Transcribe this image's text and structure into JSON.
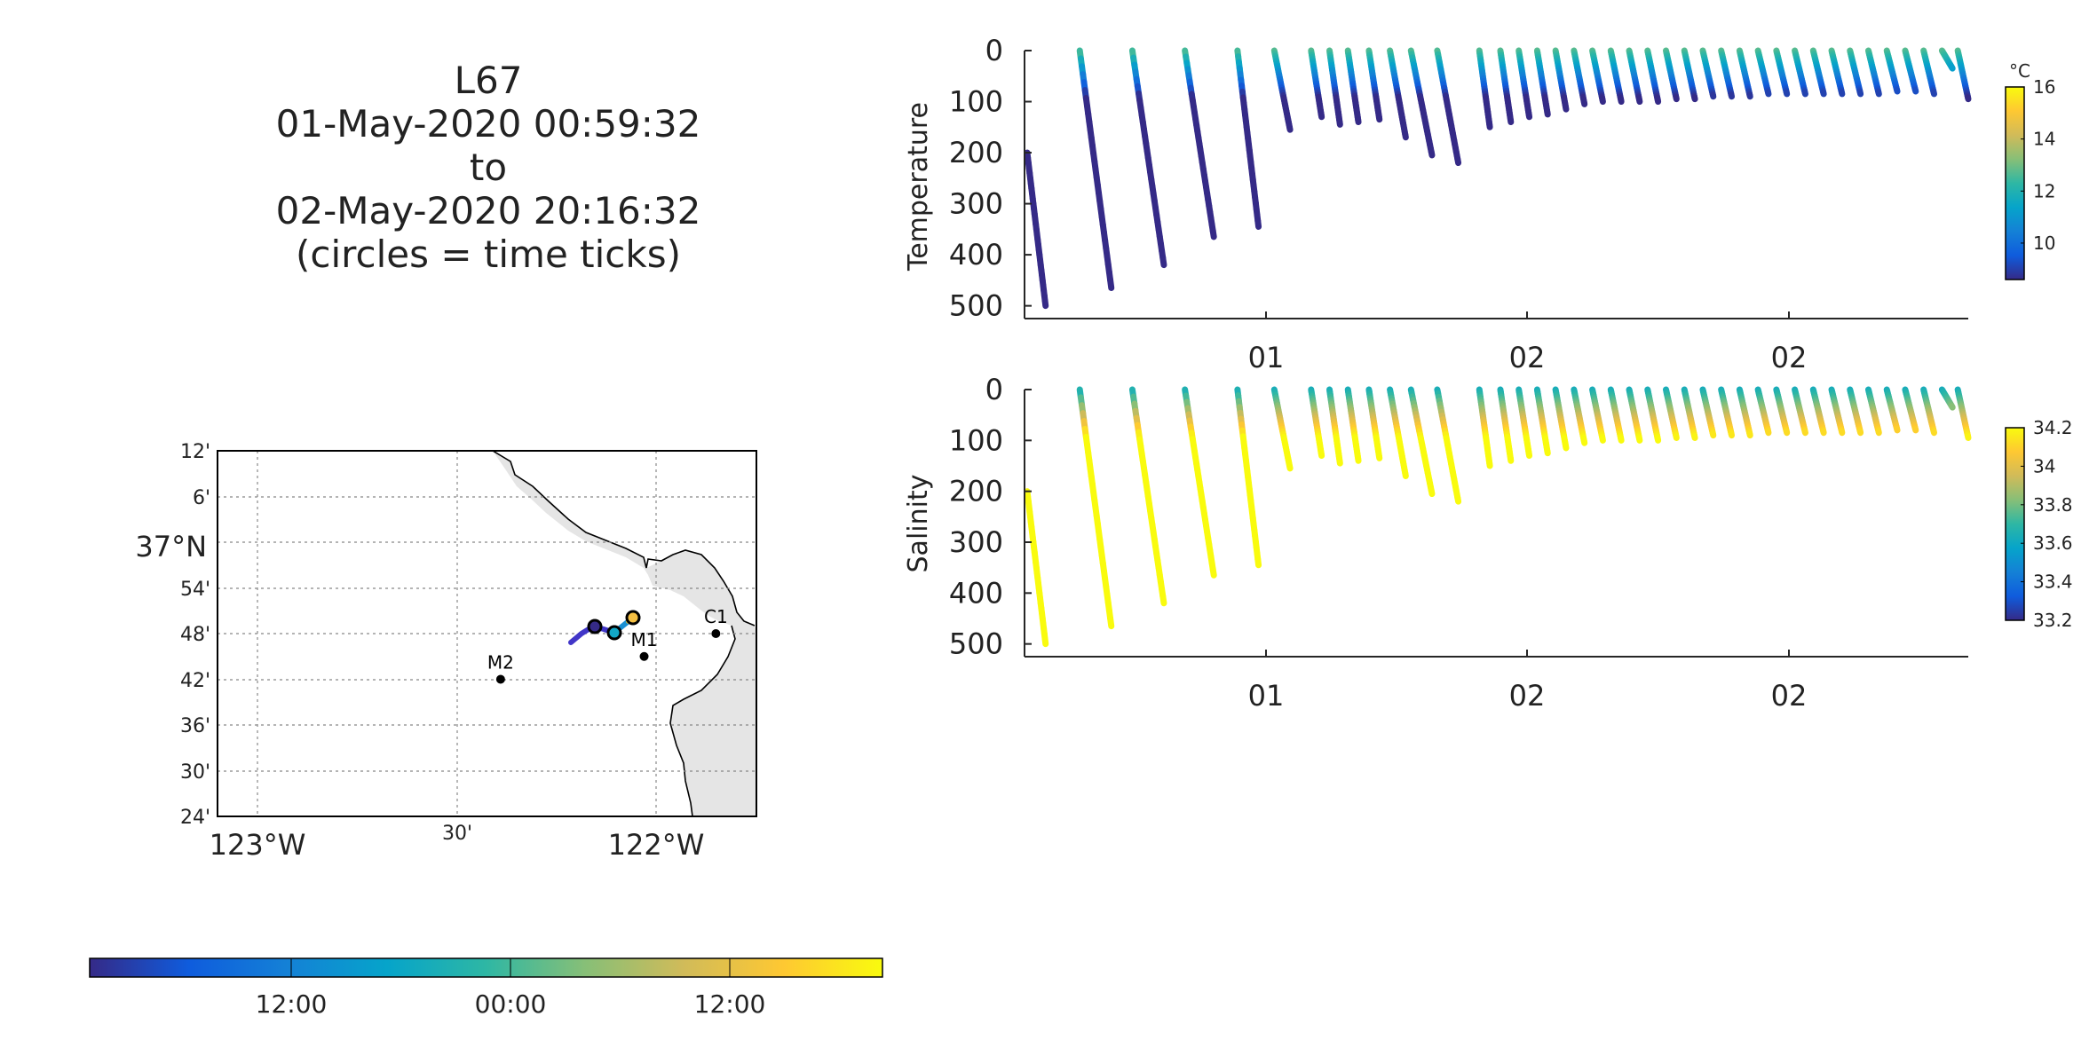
{
  "title_lines": [
    "L67",
    "01-May-2020 00:59:32",
    "to",
    "02-May-2020 20:16:32",
    "(circles = time ticks)"
  ],
  "colors": {
    "parula": [
      "#352a87",
      "#0f5cdd",
      "#1481d6",
      "#06a4ca",
      "#2eb7a4",
      "#87bf77",
      "#d1bb59",
      "#fec832",
      "#f9fb0e"
    ],
    "land": "#e5e5e5",
    "grid": "#888888",
    "axis": "#262626"
  },
  "map": {
    "lat_labels": [
      "12'",
      "6'",
      "37°N",
      "54'",
      "48'",
      "42'",
      "36'",
      "30'",
      "24'"
    ],
    "lon_labels": [
      "123°W",
      "30'",
      "122°W"
    ],
    "stations": [
      {
        "name": "C1",
        "lon": -121.85,
        "lat": 36.8
      },
      {
        "name": "M1",
        "lon": -122.03,
        "lat": 36.75
      },
      {
        "name": "M2",
        "lon": -122.39,
        "lat": 36.7
      }
    ]
  },
  "time_colorbar": {
    "tick_labels": [
      "12:00",
      "00:00",
      "12:00"
    ]
  },
  "chart_data": [
    {
      "type": "scatter",
      "title": "",
      "xlabel": "",
      "ylabel": "Temperature",
      "x_tick_labels": [
        "01",
        "02",
        "02"
      ],
      "y_ticks": [
        0,
        100,
        200,
        300,
        400,
        500
      ],
      "ylim": [
        0,
        525
      ],
      "y_reversed": true,
      "colorbar": {
        "unit": "°C",
        "ticks": [
          10,
          12,
          14,
          16
        ],
        "range": [
          8.6,
          16
        ]
      },
      "profiles": [
        {
          "x": [
            0.0,
            0.35
          ],
          "depth": [
            200,
            500
          ]
        },
        {
          "x": [
            1.0,
            1.6
          ],
          "depth": [
            0,
            465
          ]
        },
        {
          "x": [
            2.0,
            2.6
          ],
          "depth": [
            0,
            420
          ]
        },
        {
          "x": [
            3.0,
            3.55
          ],
          "depth": [
            0,
            365
          ]
        },
        {
          "x": [
            4.0,
            4.4
          ],
          "depth": [
            0,
            345
          ]
        },
        {
          "x": [
            4.7,
            5.0
          ],
          "depth": [
            0,
            155
          ]
        },
        {
          "x": [
            5.4,
            5.6
          ],
          "depth": [
            0,
            130
          ]
        },
        {
          "x": [
            5.75,
            5.95
          ],
          "depth": [
            0,
            145
          ]
        },
        {
          "x": [
            6.1,
            6.3
          ],
          "depth": [
            0,
            140
          ]
        },
        {
          "x": [
            6.5,
            6.7
          ],
          "depth": [
            0,
            135
          ]
        },
        {
          "x": [
            6.9,
            7.2
          ],
          "depth": [
            0,
            170
          ]
        },
        {
          "x": [
            7.3,
            7.7
          ],
          "depth": [
            0,
            205
          ]
        },
        {
          "x": [
            7.8,
            8.2
          ],
          "depth": [
            0,
            220
          ]
        },
        {
          "x": [
            8.6,
            8.8
          ],
          "depth": [
            0,
            150
          ]
        },
        {
          "x": [
            9.0,
            9.2
          ],
          "depth": [
            0,
            140
          ]
        },
        {
          "x": [
            9.35,
            9.55
          ],
          "depth": [
            0,
            130
          ]
        },
        {
          "x": [
            9.7,
            9.9
          ],
          "depth": [
            0,
            125
          ]
        },
        {
          "x": [
            10.05,
            10.25
          ],
          "depth": [
            0,
            115
          ]
        },
        {
          "x": [
            10.4,
            10.6
          ],
          "depth": [
            0,
            105
          ]
        },
        {
          "x": [
            10.75,
            10.95
          ],
          "depth": [
            0,
            100
          ]
        },
        {
          "x": [
            11.1,
            11.3
          ],
          "depth": [
            0,
            100
          ]
        },
        {
          "x": [
            11.45,
            11.65
          ],
          "depth": [
            0,
            100
          ]
        },
        {
          "x": [
            11.8,
            12.0
          ],
          "depth": [
            0,
            100
          ]
        },
        {
          "x": [
            12.15,
            12.35
          ],
          "depth": [
            0,
            95
          ]
        },
        {
          "x": [
            12.5,
            12.7
          ],
          "depth": [
            0,
            95
          ]
        },
        {
          "x": [
            12.85,
            13.05
          ],
          "depth": [
            0,
            90
          ]
        },
        {
          "x": [
            13.2,
            13.4
          ],
          "depth": [
            0,
            90
          ]
        },
        {
          "x": [
            13.55,
            13.75
          ],
          "depth": [
            0,
            90
          ]
        },
        {
          "x": [
            13.9,
            14.1
          ],
          "depth": [
            0,
            85
          ]
        },
        {
          "x": [
            14.25,
            14.45
          ],
          "depth": [
            0,
            85
          ]
        },
        {
          "x": [
            14.6,
            14.8
          ],
          "depth": [
            0,
            85
          ]
        },
        {
          "x": [
            14.95,
            15.15
          ],
          "depth": [
            0,
            85
          ]
        },
        {
          "x": [
            15.3,
            15.5
          ],
          "depth": [
            0,
            85
          ]
        },
        {
          "x": [
            15.65,
            15.85
          ],
          "depth": [
            0,
            85
          ]
        },
        {
          "x": [
            16.0,
            16.2
          ],
          "depth": [
            0,
            85
          ]
        },
        {
          "x": [
            16.35,
            16.55
          ],
          "depth": [
            0,
            80
          ]
        },
        {
          "x": [
            16.7,
            16.9
          ],
          "depth": [
            0,
            80
          ]
        },
        {
          "x": [
            17.05,
            17.25
          ],
          "depth": [
            0,
            85
          ]
        },
        {
          "x": [
            17.4,
            17.6
          ],
          "depth": [
            0,
            35
          ]
        },
        {
          "x": [
            17.7,
            17.9
          ],
          "depth": [
            0,
            95
          ]
        }
      ]
    },
    {
      "type": "scatter",
      "title": "",
      "xlabel": "",
      "ylabel": "Salinity",
      "x_tick_labels": [
        "01",
        "02",
        "02"
      ],
      "y_ticks": [
        0,
        100,
        200,
        300,
        400,
        500
      ],
      "ylim": [
        0,
        525
      ],
      "y_reversed": true,
      "colorbar": {
        "unit": "",
        "ticks": [
          33.2,
          33.4,
          33.6,
          33.8,
          34,
          34.2
        ],
        "range": [
          33.2,
          34.2
        ]
      },
      "profiles": "same casts as Temperature"
    }
  ]
}
